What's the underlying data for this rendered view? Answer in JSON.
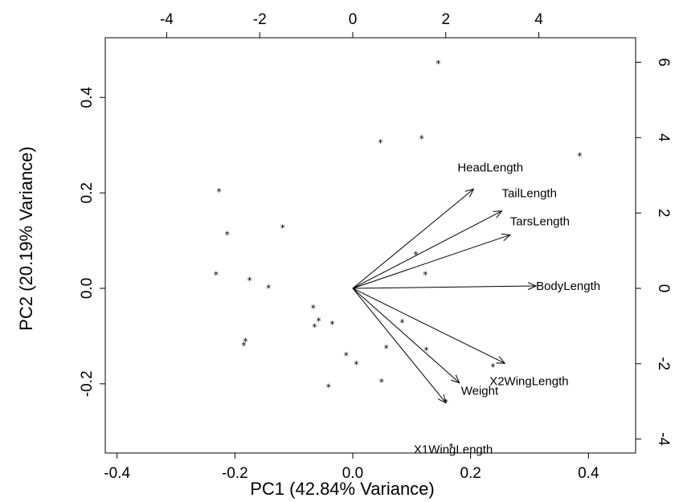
{
  "chart_data": {
    "type": "scatter",
    "subtype": "biplot",
    "title": "",
    "xlabel": "PC1 (42.84% Variance)",
    "ylabel": "PC2 (20.19% Variance)",
    "xlim": [
      -0.42,
      0.48
    ],
    "ylim": [
      -0.345,
      0.525
    ],
    "x_ticks": [
      -0.4,
      -0.2,
      0.0,
      0.2,
      0.4
    ],
    "y_ticks": [
      -0.2,
      0.0,
      0.2,
      0.4
    ],
    "x_tick_labels": [
      "-0.4",
      "-0.2",
      "0.0",
      "0.2",
      "0.4"
    ],
    "y_tick_labels": [
      "-0.2",
      "0.0",
      "0.2",
      "0.4"
    ],
    "top_axis": {
      "lim": [
        -5.32,
        6.08
      ],
      "ticks": [
        -4,
        -2,
        0,
        2,
        4
      ],
      "tick_labels": [
        "-4",
        "-2",
        "0",
        "2",
        "4"
      ]
    },
    "right_axis": {
      "lim": [
        -4.37,
        6.65
      ],
      "ticks": [
        -4,
        -2,
        0,
        2,
        4,
        6
      ],
      "tick_labels": [
        "-4",
        "-2",
        "0",
        "2",
        "4",
        "6"
      ]
    },
    "point_marker": "*",
    "points": [
      {
        "x": 0.145,
        "y": 0.475
      },
      {
        "x": 0.047,
        "y": 0.31
      },
      {
        "x": 0.117,
        "y": 0.318
      },
      {
        "x": 0.385,
        "y": 0.282
      },
      {
        "x": -0.227,
        "y": 0.207
      },
      {
        "x": -0.213,
        "y": 0.117
      },
      {
        "x": -0.119,
        "y": 0.131
      },
      {
        "x": 0.107,
        "y": 0.075
      },
      {
        "x": 0.123,
        "y": 0.033
      },
      {
        "x": -0.232,
        "y": 0.033
      },
      {
        "x": -0.175,
        "y": 0.021
      },
      {
        "x": -0.143,
        "y": 0.005
      },
      {
        "x": -0.067,
        "y": -0.037
      },
      {
        "x": -0.058,
        "y": -0.064
      },
      {
        "x": -0.035,
        "y": -0.071
      },
      {
        "x": -0.065,
        "y": -0.077
      },
      {
        "x": 0.084,
        "y": -0.067
      },
      {
        "x": -0.182,
        "y": -0.107
      },
      {
        "x": -0.185,
        "y": -0.115
      },
      {
        "x": 0.057,
        "y": -0.121
      },
      {
        "x": 0.125,
        "y": -0.125
      },
      {
        "x": -0.011,
        "y": -0.136
      },
      {
        "x": 0.006,
        "y": -0.155
      },
      {
        "x": 0.238,
        "y": -0.16
      },
      {
        "x": 0.049,
        "y": -0.192
      },
      {
        "x": -0.041,
        "y": -0.203
      },
      {
        "x": 0.158,
        "y": -0.235
      },
      {
        "x": 0.167,
        "y": -0.327
      }
    ],
    "loadings": [
      {
        "name": "HeadLength",
        "x": 0.205,
        "y": 0.208
      },
      {
        "name": "TailLength",
        "x": 0.253,
        "y": 0.162
      },
      {
        "name": "TarsLength",
        "x": 0.267,
        "y": 0.112
      },
      {
        "name": "BodyLength",
        "x": 0.311,
        "y": 0.005
      },
      {
        "name": "X2WingLength",
        "x": 0.258,
        "y": -0.157
      },
      {
        "name": "Weight",
        "x": 0.181,
        "y": -0.198
      },
      {
        "name": "X1WingLength",
        "x": 0.158,
        "y": -0.24
      }
    ]
  }
}
